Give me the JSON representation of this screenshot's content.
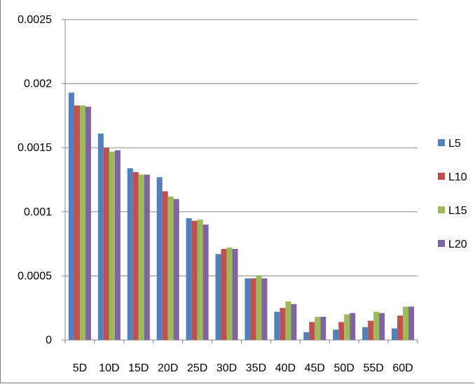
{
  "chart_data": {
    "type": "bar",
    "title": "",
    "xlabel": "",
    "ylabel": "",
    "categories": [
      "5D",
      "10D",
      "15D",
      "20D",
      "25D",
      "30D",
      "35D",
      "40D",
      "45D",
      "50D",
      "55D",
      "60D"
    ],
    "ylim": [
      0,
      0.0025
    ],
    "yticks": [
      "0",
      "0.0005",
      "0.001",
      "0.0015",
      "0.002",
      "0.0025"
    ],
    "grid": true,
    "legend_position": "right",
    "series": [
      {
        "name": "L5",
        "color": "#4F81BD",
        "values": [
          0.00193,
          0.00161,
          0.00134,
          0.00127,
          0.00095,
          0.00067,
          0.00048,
          0.00022,
          6e-05,
          8e-05,
          0.0001,
          9e-05
        ]
      },
      {
        "name": "L10",
        "color": "#C0504D",
        "values": [
          0.00183,
          0.0015,
          0.00131,
          0.00116,
          0.00093,
          0.00071,
          0.00048,
          0.00025,
          0.00014,
          0.00014,
          0.00015,
          0.00019
        ]
      },
      {
        "name": "L15",
        "color": "#9BBB59",
        "values": [
          0.00183,
          0.00147,
          0.00129,
          0.00112,
          0.00094,
          0.00072,
          0.0005,
          0.0003,
          0.00018,
          0.0002,
          0.00022,
          0.00026
        ]
      },
      {
        "name": "L20",
        "color": "#8064A2",
        "values": [
          0.00182,
          0.00148,
          0.00129,
          0.0011,
          0.0009,
          0.00071,
          0.00048,
          0.00028,
          0.00018,
          0.00021,
          0.00021,
          0.00026
        ]
      }
    ]
  }
}
